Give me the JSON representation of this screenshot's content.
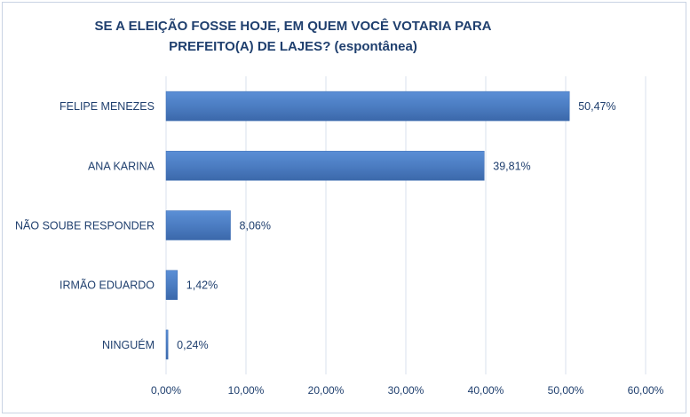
{
  "chart_data": {
    "type": "bar",
    "orientation": "horizontal",
    "title_line1": "SE A ELEIÇÃO FOSSE HOJE, EM QUEM VOCÊ VOTARIA PARA",
    "title_line2": "PREFEITO(A) DE LAJES? (espontânea)",
    "categories": [
      "FELIPE MENEZES",
      "ANA KARINA",
      "NÃO SOUBE RESPONDER",
      "IRMÃO EDUARDO",
      "NINGUÉM"
    ],
    "values": [
      50.47,
      39.81,
      8.06,
      1.42,
      0.24
    ],
    "value_labels": [
      "50,47%",
      "39,81%",
      "8,06%",
      "1,42%",
      "0,24%"
    ],
    "xlim": [
      0,
      60
    ],
    "xticks": [
      0,
      10,
      20,
      30,
      40,
      50,
      60
    ],
    "xtick_labels": [
      "0,00%",
      "10,00%",
      "20,00%",
      "30,00%",
      "40,00%",
      "50,00%",
      "60,00%"
    ],
    "grid": true,
    "bar_color": "#4a7bc0"
  }
}
